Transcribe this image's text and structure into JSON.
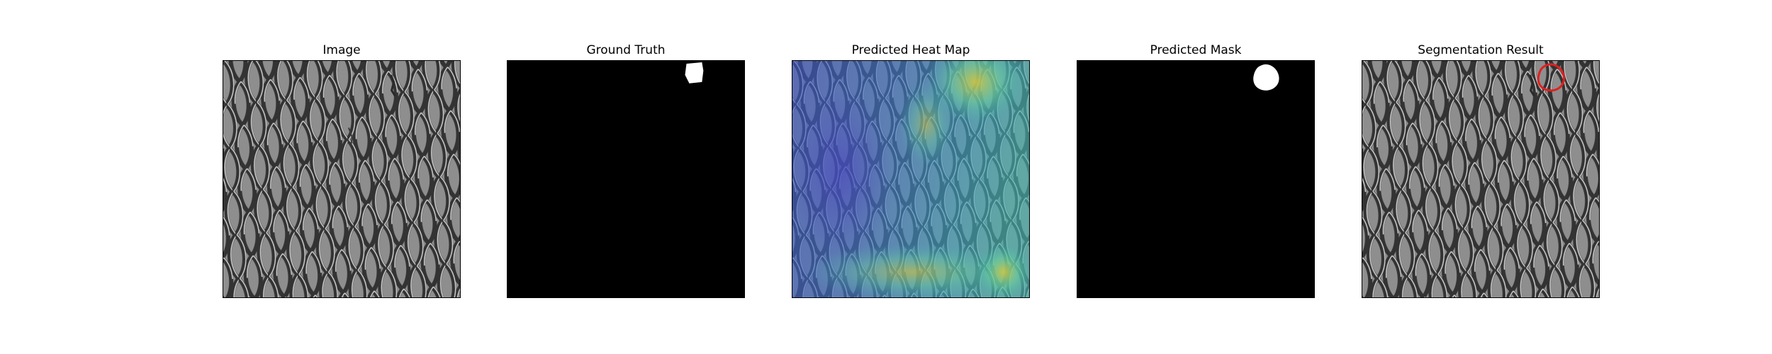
{
  "figure": {
    "panels": [
      {
        "title": "Image",
        "icon": "mesh-texture-image"
      },
      {
        "title": "Ground Truth",
        "icon": "binary-mask-image"
      },
      {
        "title": "Predicted Heat Map",
        "icon": "heatmap-overlay-image"
      },
      {
        "title": "Predicted Mask",
        "icon": "binary-mask-image"
      },
      {
        "title": "Segmentation Result",
        "icon": "contour-overlay-image"
      }
    ],
    "colors": {
      "mesh_bg": "#8e8e8e",
      "mesh_line": "#3a3a3a",
      "mask_bg": "#000000",
      "mask_fg": "#ffffff",
      "contour": "#e02020",
      "heat_low": "#3b4fc8",
      "heat_mid": "#3fb7b0",
      "heat_high": "#c8c23a"
    }
  }
}
